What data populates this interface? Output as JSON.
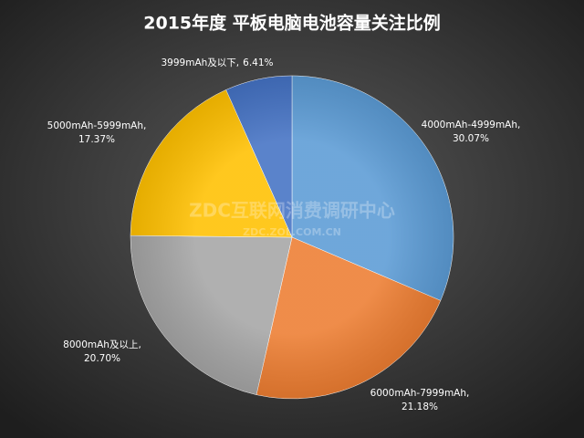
{
  "chart_data": {
    "type": "pie",
    "title": "2015年度 平板电脑电池容量关注比例",
    "categories": [
      "4000mAh-4999mAh,",
      "6000mAh-7999mAh,",
      "8000mAh及以上,",
      "5000mAh-5999mAh,",
      "3999mAh及以下,"
    ],
    "values": [
      30.07,
      21.18,
      20.7,
      17.37,
      6.41
    ],
    "value_labels": [
      "30.07%",
      "21.18%",
      "20.70%",
      "17.37%",
      "6.41%"
    ],
    "colors": [
      "#5b9bd5",
      "#ed7d31",
      "#a5a5a5",
      "#ffc000",
      "#4472c4"
    ],
    "watermark": "ZDC互联网消费调研中心",
    "watermark_url": "ZDC.ZOL.COM.CN"
  }
}
